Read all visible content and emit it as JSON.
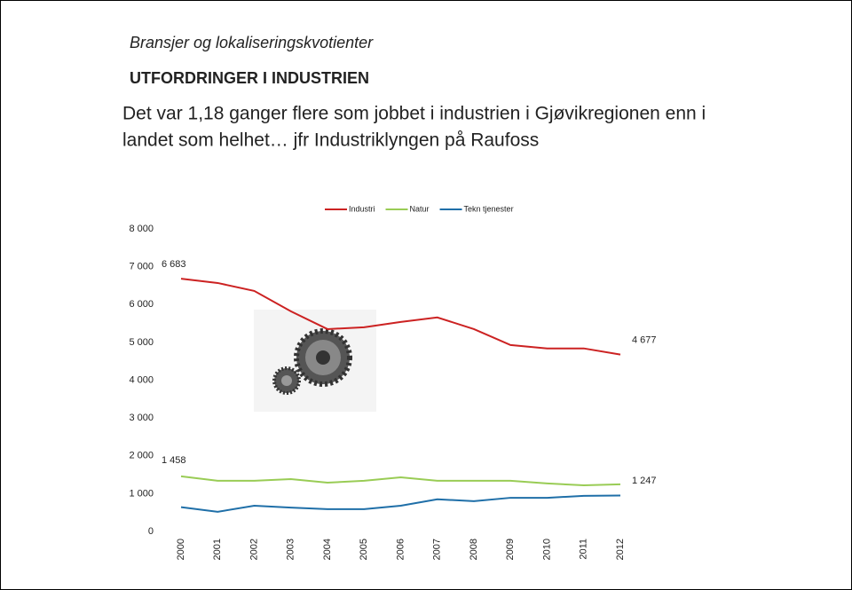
{
  "header": {
    "subtitle": "Bransjer og lokaliseringskvotienter",
    "title": "UTFORDRINGER I INDUSTRIEN",
    "body": [
      "Det var 1,18 ganger flere som jobbet i industrien i Gjøvikregionen enn i",
      "landet som helhet… jfr Industriklyngen på Raufoss"
    ]
  },
  "chart_data": {
    "type": "line",
    "grid": false,
    "legend": "top",
    "categories": [
      "2000",
      "2001",
      "2002",
      "2003",
      "2004",
      "2005",
      "2006",
      "2007",
      "2008",
      "2009",
      "2010",
      "2011",
      "2012"
    ],
    "ylim": [
      0,
      8000
    ],
    "yticks": [
      0,
      {
        "value": 1000,
        "label": "1 000"
      },
      {
        "value": 2000,
        "label": "2 000"
      },
      {
        "value": 3000,
        "label": "3 000"
      },
      {
        "value": 4000,
        "label": "4 000"
      },
      {
        "value": 5000,
        "label": "5 000"
      },
      {
        "value": 6000,
        "label": "6 000"
      },
      {
        "value": 7000,
        "label": "7 000"
      },
      {
        "value": 8000,
        "label": "8 000"
      }
    ],
    "series": [
      {
        "name": "Industri",
        "color": "#cc2222",
        "values": [
          6683,
          6570,
          6360,
          5820,
          5350,
          5400,
          5540,
          5660,
          5350,
          4930,
          4840,
          4840,
          4677
        ],
        "value_labels": [
          "6 683",
          null,
          null,
          null,
          null,
          null,
          null,
          null,
          null,
          null,
          null,
          null,
          "4 677"
        ]
      },
      {
        "name": "Natur",
        "color": "#99cc55",
        "values": [
          1458,
          1340,
          1340,
          1385,
          1290,
          1340,
          1430,
          1340,
          1340,
          1340,
          1270,
          1220,
          1247
        ],
        "value_labels": [
          "1 458",
          null,
          null,
          null,
          null,
          null,
          null,
          null,
          null,
          null,
          null,
          null,
          "1 247"
        ]
      },
      {
        "name": "Tekn tjenester",
        "color": "#1f6fa8",
        "values": [
          643,
          520,
          680,
          630,
          590,
          590,
          680,
          850,
          800,
          890,
          890,
          940,
          950
        ],
        "value_labels": [
          null,
          null,
          null,
          null,
          null,
          null,
          null,
          null,
          null,
          null,
          null,
          null,
          null
        ]
      }
    ]
  }
}
